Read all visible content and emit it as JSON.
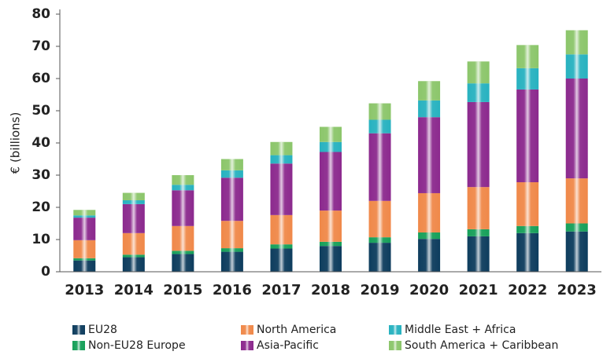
{
  "chart_data": {
    "type": "stacked_bar",
    "y_label": "€ (billions)",
    "categories": [
      "2013",
      "2014",
      "2015",
      "2016",
      "2017",
      "2018",
      "2019",
      "2020",
      "2021",
      "2022",
      "2023"
    ],
    "series": [
      {
        "name": "EU28",
        "color": "#0e3d5e",
        "values": [
          3.5,
          4.5,
          5.5,
          6.2,
          7.2,
          8,
          9,
          10.2,
          11,
          12,
          12.5
        ]
      },
      {
        "name": "Non-EU28 Europe",
        "color": "#17a05a",
        "values": [
          0.7,
          0.8,
          1.0,
          1.1,
          1.3,
          1.3,
          1.7,
          2.0,
          2.2,
          2.2,
          2.5
        ]
      },
      {
        "name": "North America",
        "color": "#f0894a",
        "values": [
          5.6,
          6.7,
          7.7,
          8.5,
          9.1,
          9.7,
          11.3,
          12.2,
          13.1,
          13.6,
          14
        ]
      },
      {
        "name": "Asia-Pacific",
        "color": "#8c2a8e",
        "values": [
          7,
          9,
          11.1,
          13.4,
          16,
          18.2,
          21,
          23.6,
          26.4,
          28.8,
          31
        ]
      },
      {
        "name": "Middle East + Africa",
        "color": "#28b2c0",
        "values": [
          0.7,
          1.2,
          1.7,
          2.3,
          2.6,
          3.1,
          4.2,
          5.2,
          5.8,
          6.6,
          7.5
        ]
      },
      {
        "name": "South America + Caribbean",
        "color": "#8cc66b",
        "values": [
          1.7,
          2.3,
          3,
          3.5,
          4.1,
          4.7,
          5.1,
          6,
          6.8,
          7.2,
          7.5
        ]
      }
    ],
    "ylim": [
      0,
      80
    ],
    "yticks": [
      0,
      10,
      20,
      30,
      40,
      50,
      60,
      70,
      80
    ],
    "grid": false
  }
}
